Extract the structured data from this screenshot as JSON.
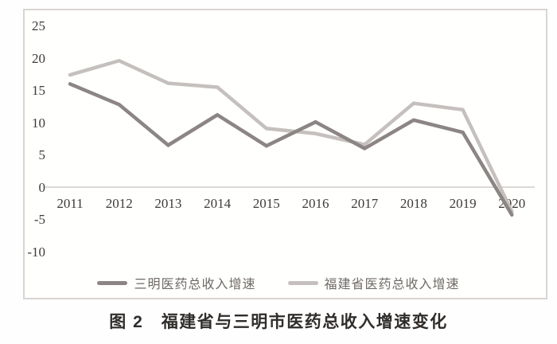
{
  "figure": {
    "caption": "图 2　福建省与三明市医药总收入增速变化"
  },
  "chart_data": {
    "type": "line",
    "title": "",
    "xlabel": "",
    "ylabel": "",
    "x": [
      2011,
      2012,
      2013,
      2014,
      2015,
      2016,
      2017,
      2018,
      2019,
      2020
    ],
    "series": [
      {
        "name": "三明医药总收入增速",
        "color": "#8b8584",
        "values": [
          16.0,
          12.8,
          6.5,
          11.2,
          6.4,
          10.1,
          6.0,
          10.4,
          8.5,
          -4.3
        ]
      },
      {
        "name": "福建省医药总收入增速",
        "color": "#c5c0bd",
        "values": [
          17.4,
          19.6,
          16.1,
          15.5,
          9.1,
          8.3,
          6.6,
          13.0,
          12.0,
          -3.8
        ]
      }
    ],
    "ylim": [
      -10,
      25
    ],
    "y_ticks": [
      25,
      20,
      15,
      10,
      5,
      0,
      -5,
      -10
    ],
    "grid": "zero-baseline-only",
    "legend_position": "bottom-center-inside-frame",
    "frame_border_color": "#d9d5d1",
    "zero_line_color": "#d0cbc7",
    "tick_label_color": "#3e3a38"
  }
}
